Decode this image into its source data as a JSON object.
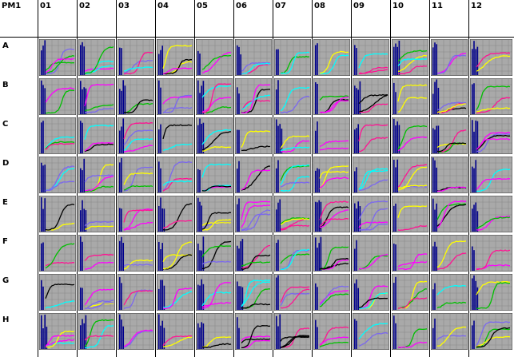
{
  "plate": {
    "title": "PM1",
    "columns": [
      "01",
      "02",
      "03",
      "04",
      "05",
      "06",
      "07",
      "08",
      "09",
      "10",
      "11",
      "12"
    ],
    "rows": [
      "A",
      "B",
      "C",
      "D",
      "E",
      "F",
      "G",
      "H"
    ]
  },
  "colors": {
    "panel_bg": "#a9a9a9",
    "panel_grid": "#8a8a8a",
    "panel_border": "#3c3c3c",
    "spike": "#00008b",
    "curve_colors": [
      "#ff00ff",
      "#ffff00",
      "#00c000",
      "#00ffff",
      "#7b68ee",
      "#000000",
      "#ff1493"
    ]
  }
}
